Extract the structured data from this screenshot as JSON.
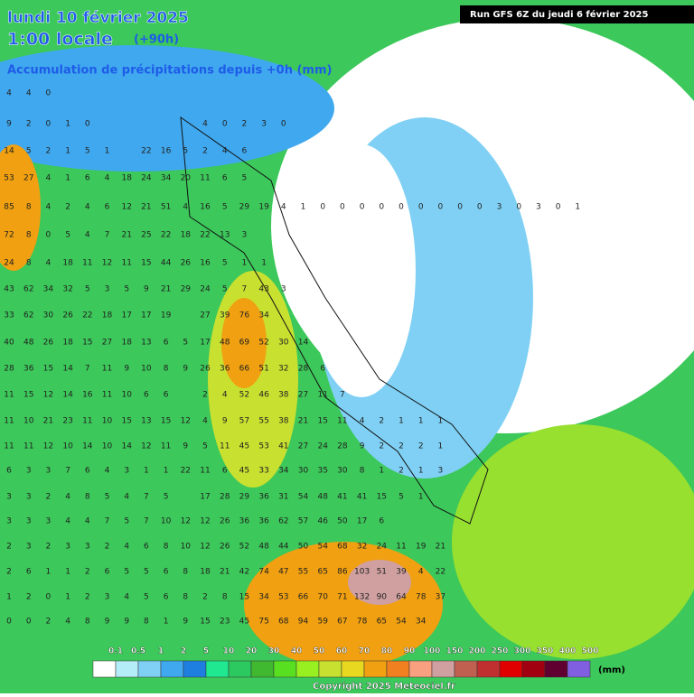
{
  "header": {
    "date": "lundi 10 février 2025",
    "time": "1:00 locale",
    "lead": "(+90h)",
    "subtitle": "Accumulation de précipitations depuis +0h (mm)",
    "run": "Run GFS 6Z du jeudi 6 février 2025"
  },
  "grid": [
    [
      4,
      4,
      0
    ],
    [
      9,
      2,
      0,
      1,
      0,
      null,
      null,
      null,
      null,
      null,
      4,
      0,
      2,
      3,
      0
    ],
    [
      14,
      5,
      2,
      1,
      5,
      1,
      null,
      22,
      16,
      5,
      2,
      4,
      6
    ],
    [
      53,
      27,
      4,
      1,
      6,
      4,
      18,
      24,
      34,
      20,
      11,
      6,
      5
    ],
    [
      85,
      8,
      4,
      2,
      4,
      6,
      12,
      21,
      51,
      4,
      16,
      5,
      29,
      19,
      4,
      1,
      0,
      0,
      0,
      0,
      0,
      0,
      0,
      0,
      0,
      3,
      0,
      3,
      0,
      1
    ],
    [
      72,
      8,
      0,
      5,
      4,
      7,
      21,
      25,
      22,
      18,
      22,
      13,
      3
    ],
    [
      24,
      8,
      4,
      18,
      11,
      12,
      11,
      15,
      44,
      26,
      16,
      5,
      1,
      1
    ],
    [
      43,
      62,
      34,
      32,
      5,
      3,
      5,
      9,
      21,
      29,
      24,
      5,
      7,
      43,
      3
    ],
    [
      33,
      62,
      30,
      26,
      22,
      18,
      17,
      17,
      19,
      null,
      27,
      39,
      76,
      34
    ],
    [
      40,
      48,
      26,
      18,
      15,
      27,
      18,
      13,
      6,
      5,
      17,
      48,
      69,
      52,
      30,
      14
    ],
    [
      28,
      36,
      15,
      14,
      7,
      11,
      9,
      10,
      8,
      9,
      26,
      36,
      66,
      51,
      32,
      28,
      6
    ],
    [
      11,
      15,
      12,
      14,
      16,
      11,
      10,
      6,
      6,
      null,
      2,
      4,
      52,
      46,
      38,
      27,
      11,
      7
    ],
    [
      11,
      10,
      21,
      23,
      11,
      10,
      15,
      13,
      15,
      12,
      4,
      9,
      57,
      55,
      38,
      21,
      15,
      11,
      4,
      2,
      1,
      1,
      1
    ],
    [
      11,
      11,
      12,
      10,
      14,
      10,
      14,
      12,
      11,
      9,
      5,
      11,
      45,
      53,
      41,
      27,
      24,
      28,
      9,
      2,
      2,
      2,
      1
    ],
    [
      6,
      3,
      3,
      7,
      6,
      4,
      3,
      1,
      1,
      22,
      11,
      6,
      45,
      33,
      34,
      30,
      35,
      30,
      8,
      1,
      2,
      1,
      3
    ],
    [
      3,
      3,
      2,
      4,
      8,
      5,
      4,
      7,
      5,
      null,
      17,
      28,
      29,
      36,
      31,
      54,
      48,
      41,
      41,
      15,
      5,
      1
    ],
    [
      3,
      3,
      3,
      4,
      4,
      7,
      5,
      7,
      10,
      12,
      12,
      26,
      36,
      36,
      62,
      57,
      46,
      50,
      17,
      6
    ],
    [
      2,
      3,
      2,
      3,
      3,
      2,
      4,
      6,
      8,
      10,
      12,
      26,
      52,
      48,
      44,
      50,
      54,
      68,
      32,
      24,
      11,
      19,
      21
    ],
    [
      2,
      6,
      1,
      1,
      2,
      6,
      5,
      5,
      6,
      8,
      18,
      21,
      42,
      74,
      47,
      55,
      65,
      86,
      103,
      51,
      39,
      4,
      22
    ],
    [
      1,
      2,
      0,
      1,
      2,
      3,
      4,
      5,
      6,
      8,
      2,
      8,
      15,
      34,
      53,
      66,
      70,
      71,
      132,
      90,
      64,
      78,
      37
    ],
    [
      0,
      0,
      2,
      4,
      8,
      9,
      9,
      8,
      1,
      9,
      15,
      23,
      45,
      75,
      68,
      94,
      59,
      67,
      78,
      65,
      54,
      34
    ]
  ],
  "legend": {
    "labels": [
      "0.1",
      "0.5",
      "1",
      "2",
      "5",
      "10",
      "20",
      "30",
      "40",
      "50",
      "60",
      "70",
      "80",
      "90",
      "100",
      "150",
      "200",
      "250",
      "300",
      "350",
      "400",
      "500"
    ],
    "colors": [
      "#ffffff",
      "#b4ecf8",
      "#7fd0f4",
      "#40a8ee",
      "#1e7fe0",
      "#20e890",
      "#2cc860",
      "#40b830",
      "#58e020",
      "#98f020",
      "#c8e030",
      "#e8d820",
      "#f0a010",
      "#f08020",
      "#f8a080",
      "#d0a0a0",
      "#c06050",
      "#c03030",
      "#e00000",
      "#a00010",
      "#600030",
      "#8060e0"
    ],
    "unit": "(mm)"
  },
  "footer": "Copyright 2025 Meteociel.fr"
}
